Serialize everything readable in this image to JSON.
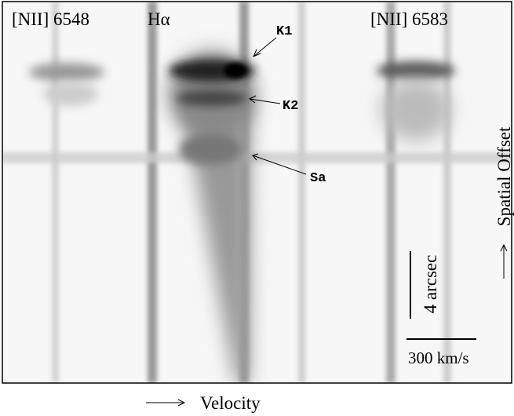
{
  "figure": {
    "line_labels": [
      "[NII] 6548",
      "Hα",
      "[NII] 6583"
    ],
    "components": [
      "K1",
      "K2",
      "Sa"
    ],
    "scale_bars": {
      "spatial": "4 arcsec",
      "velocity": "300 km/s"
    },
    "axes": {
      "y": "Spatial Offset",
      "x": "Velocity"
    }
  }
}
